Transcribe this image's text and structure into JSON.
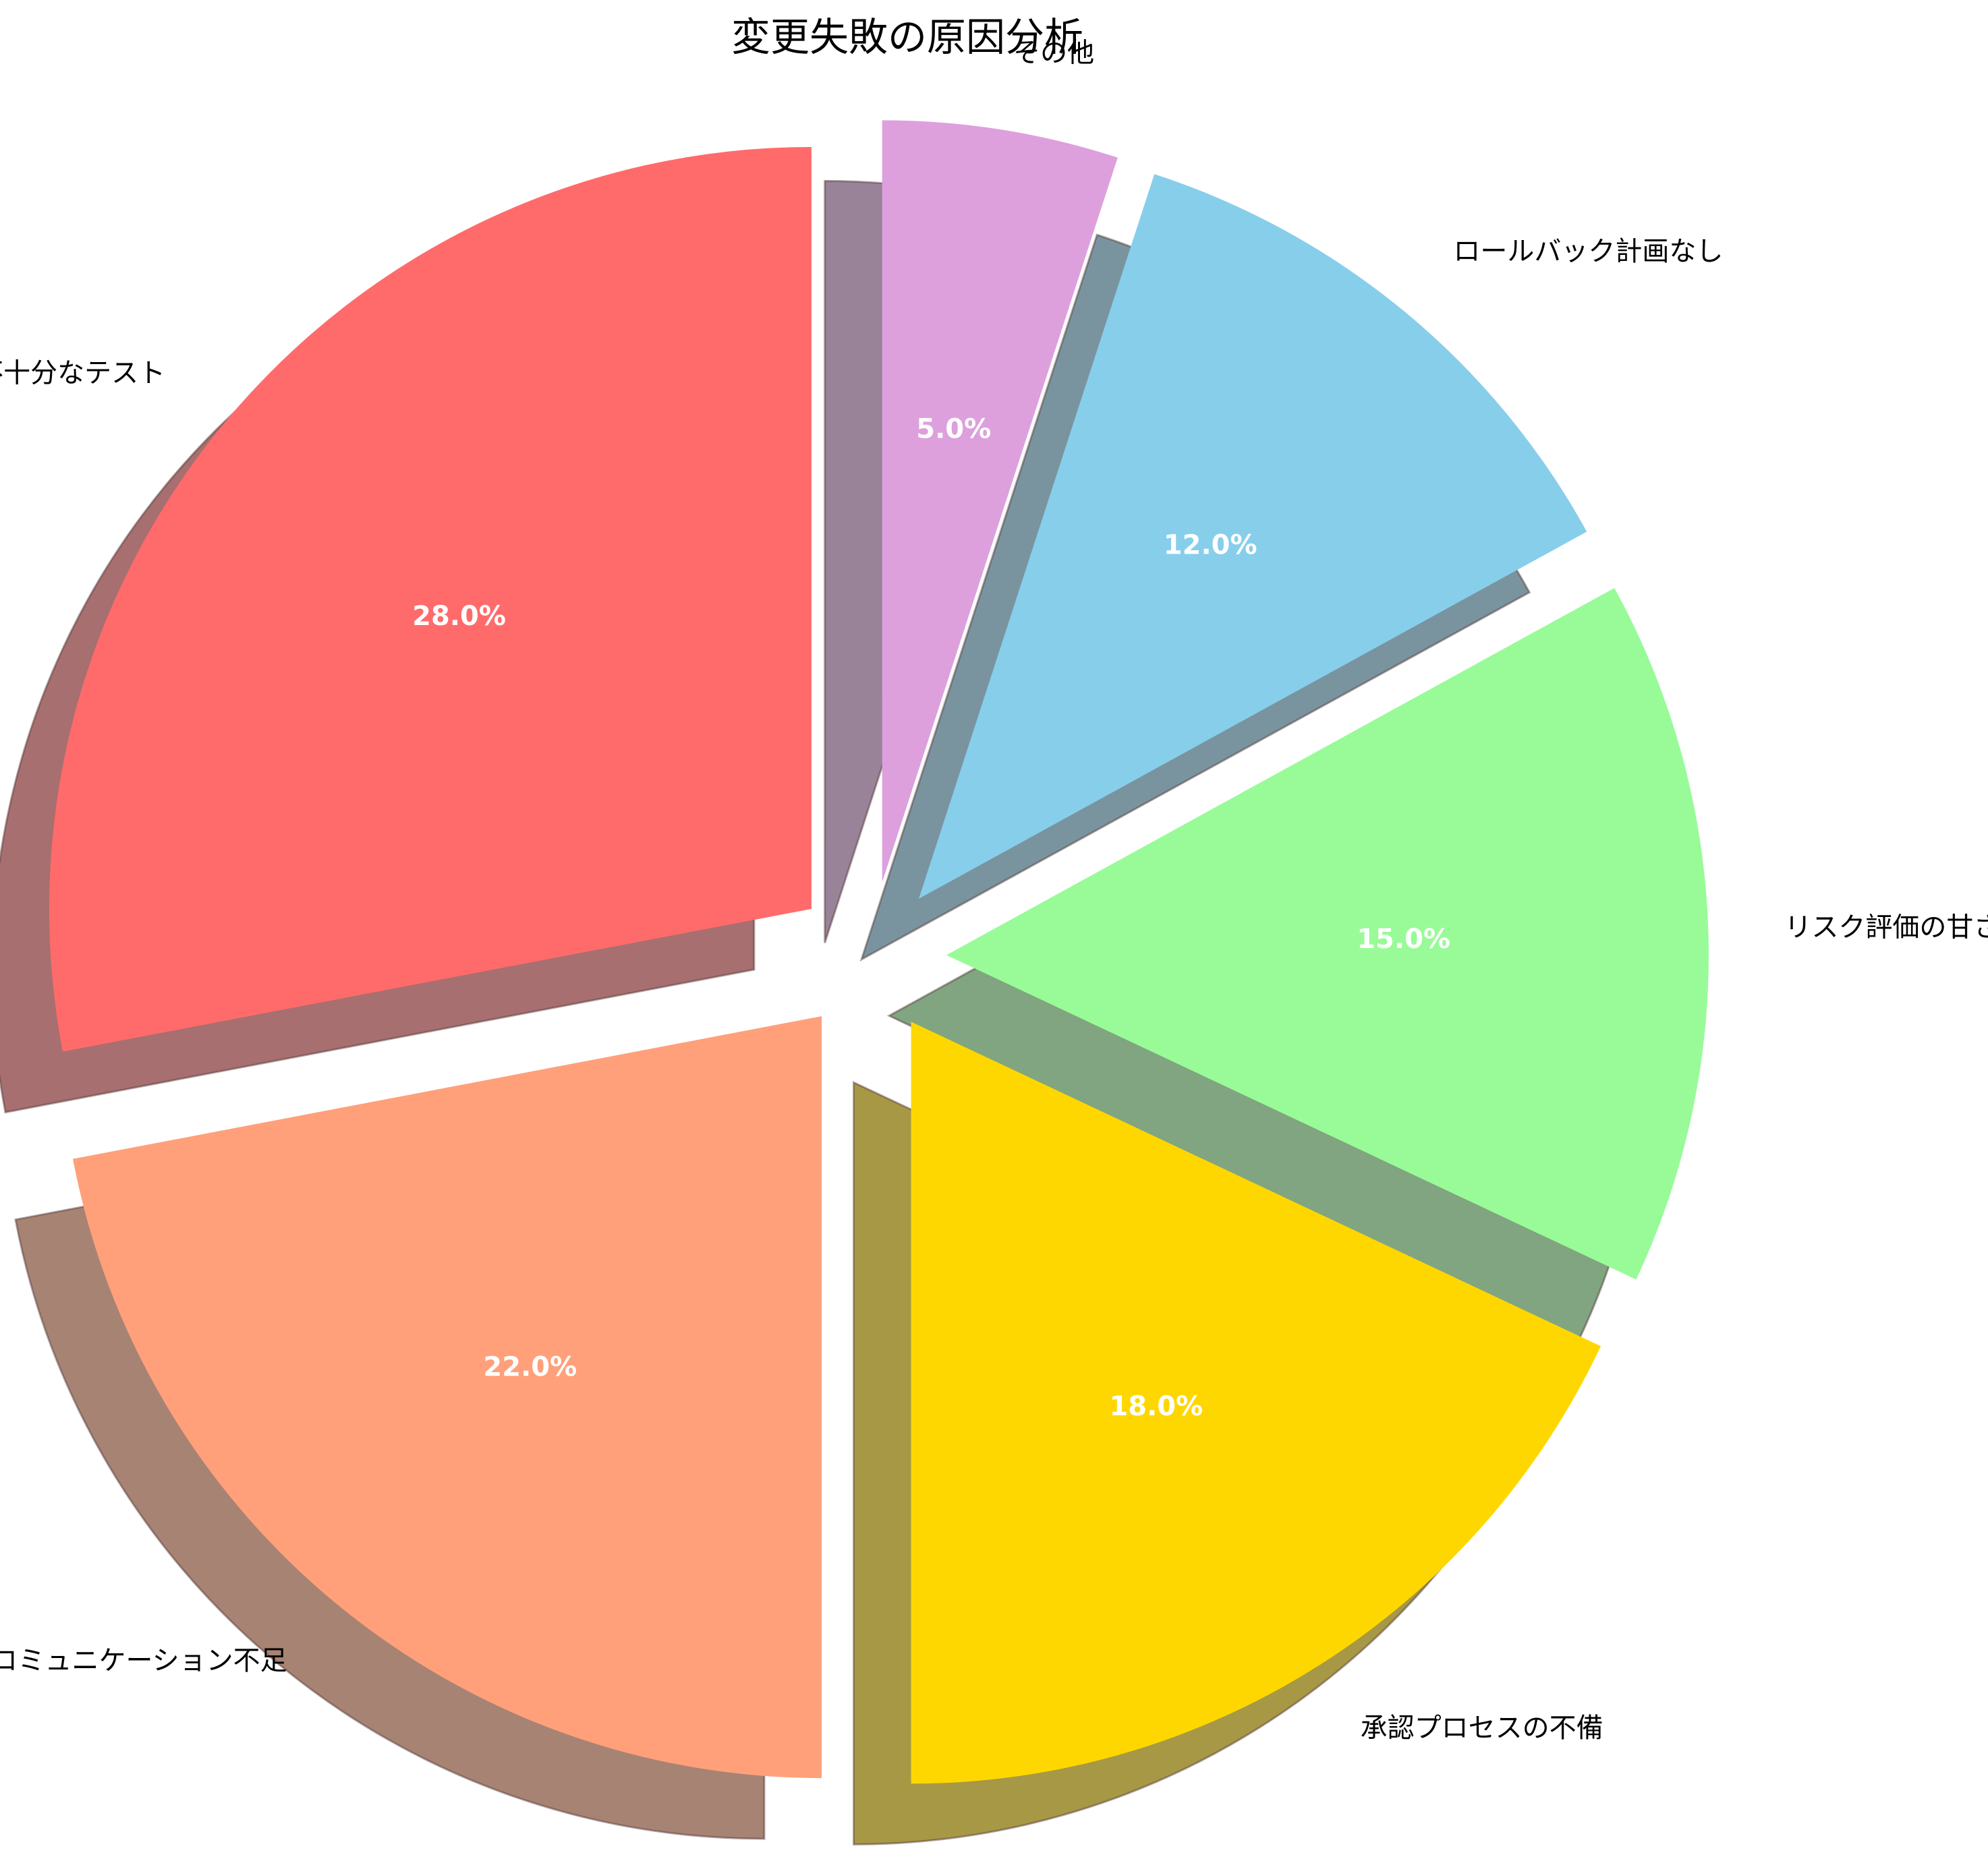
{
  "chart_data": {
    "type": "pie",
    "title": "変更失敗の原因分析",
    "start_angle_deg": 90,
    "direction": "clockwise",
    "shadow": true,
    "slices": [
      {
        "label": "その他",
        "value": 5.0,
        "pct_label": "5.0%",
        "color": "#DDA0DD",
        "explode": 0.1
      },
      {
        "label": "ロールバック計画なし",
        "value": 12.0,
        "pct_label": "12.0%",
        "color": "#87CEEB",
        "explode": 0.1
      },
      {
        "label": "リスク評価の甘さ",
        "value": 15.0,
        "pct_label": "15.0%",
        "color": "#98FB98",
        "explode": 0.1
      },
      {
        "label": "承認プロセスの不備",
        "value": 18.0,
        "pct_label": "18.0%",
        "color": "#FFD700",
        "explode": 0.1
      },
      {
        "label": "コミュニケーション不足",
        "value": 22.0,
        "pct_label": "22.0%",
        "color": "#FFA07A",
        "explode": 0.1
      },
      {
        "label": "不十分なテスト",
        "value": 28.0,
        "pct_label": "28.0%",
        "color": "#FF6B6B",
        "explode": 0.1
      }
    ]
  }
}
